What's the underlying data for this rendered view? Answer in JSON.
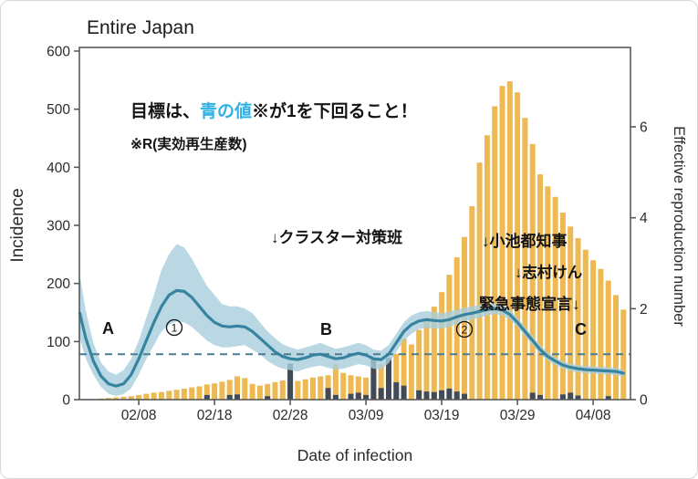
{
  "title": "Entire Japan",
  "colors": {
    "bar_yellow": "#EDB952",
    "bar_dark": "#414B58",
    "rt_line": "#2F7F9D",
    "rt_band": "#A9CEDD",
    "reference_dash": "#4A7C92",
    "goal_text_blue": "#2FB1E3",
    "axis": "#58595B",
    "text": "#1E1E1E"
  },
  "annotations": {
    "goal_prefix": "目標は、",
    "goal_blue": "青の値",
    "goal_suffix": "※が1を下回ること！",
    "goal_note": "※R(実効再生産数)",
    "cluster_team": "↓クラスター対策班",
    "koike_governor": "↓小池都知事",
    "shimura_ken": "↓志村けん",
    "emergency_declaration": "緊急事態宣言↓",
    "marker_a": "A",
    "marker_b": "B",
    "marker_c": "C",
    "marker_1": "1",
    "marker_2": "2"
  },
  "chart_data": {
    "type": "bar+line",
    "title": "Entire Japan",
    "xlabel": "Date of infection",
    "ylabel": "Incidence",
    "y2label": "Effective reproduction number",
    "ylim": [
      0,
      600
    ],
    "y2lim": [
      0,
      7.67
    ],
    "y_ticks": [
      0,
      100,
      200,
      300,
      400,
      500,
      600
    ],
    "y2_ticks": [
      0,
      2,
      4,
      6
    ],
    "x_ticks": {
      "labels": [
        "02/08",
        "02/18",
        "02/28",
        "03/09",
        "03/19",
        "03/29",
        "04/08"
      ],
      "days": [
        7,
        17,
        27,
        37,
        47,
        57,
        67
      ]
    },
    "reference_line_y2": 1,
    "incidence": {
      "dates": [
        "02/01",
        "02/02",
        "02/03",
        "02/04",
        "02/05",
        "02/06",
        "02/07",
        "02/08",
        "02/09",
        "02/10",
        "02/11",
        "02/12",
        "02/13",
        "02/14",
        "02/15",
        "02/16",
        "02/17",
        "02/18",
        "02/19",
        "02/20",
        "02/21",
        "02/22",
        "02/23",
        "02/24",
        "02/25",
        "02/26",
        "02/27",
        "02/28",
        "02/29",
        "03/01",
        "03/02",
        "03/03",
        "03/04",
        "03/05",
        "03/06",
        "03/07",
        "03/08",
        "03/09",
        "03/10",
        "03/11",
        "03/12",
        "03/13",
        "03/14",
        "03/15",
        "03/16",
        "03/17",
        "03/18",
        "03/19",
        "03/20",
        "03/21",
        "03/22",
        "03/23",
        "03/24",
        "03/25",
        "03/26",
        "03/27",
        "03/28",
        "03/29",
        "03/30",
        "03/31",
        "04/01",
        "04/02",
        "04/03",
        "04/04",
        "04/05",
        "04/06",
        "04/07",
        "04/08",
        "04/09",
        "04/10",
        "04/11",
        "04/12"
      ],
      "values": [
        0,
        1,
        2,
        3,
        4,
        5,
        6,
        8,
        10,
        12,
        13,
        15,
        17,
        19,
        21,
        23,
        26,
        28,
        31,
        34,
        40,
        37,
        27,
        24,
        27,
        30,
        33,
        40,
        32,
        35,
        38,
        40,
        42,
        61,
        46,
        42,
        40,
        38,
        50,
        61,
        60,
        79,
        105,
        95,
        120,
        140,
        160,
        185,
        215,
        245,
        280,
        333,
        408,
        455,
        505,
        540,
        548,
        529,
        485,
        440,
        388,
        367,
        349,
        322,
        298,
        278,
        258,
        240,
        225,
        205,
        180,
        155
      ],
      "dark_values": [
        0,
        0,
        0,
        0,
        0,
        0,
        0,
        0,
        0,
        0,
        0,
        0,
        0,
        0,
        0,
        0,
        8,
        0,
        0,
        8,
        9,
        0,
        0,
        0,
        6,
        0,
        0,
        62,
        0,
        0,
        0,
        0,
        20,
        8,
        0,
        10,
        12,
        8,
        71,
        20,
        72,
        30,
        24,
        0,
        16,
        14,
        13,
        16,
        19,
        14,
        10,
        0,
        0,
        0,
        0,
        0,
        0,
        0,
        0,
        12,
        8,
        0,
        0,
        9,
        12,
        7,
        0,
        0,
        0,
        6,
        0,
        0
      ]
    },
    "rt": {
      "days": [
        -0.8,
        0,
        1,
        2,
        3,
        4,
        5,
        6,
        7,
        8,
        9,
        10,
        11,
        12,
        13,
        14,
        15,
        16,
        17,
        18,
        19,
        20,
        21,
        22,
        23,
        24,
        25,
        26,
        27,
        28,
        29,
        30,
        31,
        32,
        33,
        34,
        35,
        36,
        37,
        38,
        39,
        40,
        41,
        42,
        43,
        44,
        45,
        46,
        47,
        48,
        49,
        50,
        51,
        52,
        53,
        54,
        55,
        56,
        57,
        58,
        59,
        60,
        61,
        62,
        63,
        64,
        65,
        66,
        67,
        68,
        69,
        70,
        71
      ],
      "values": [
        1.9,
        1.35,
        0.85,
        0.52,
        0.35,
        0.3,
        0.35,
        0.55,
        0.9,
        1.3,
        1.7,
        2.05,
        2.3,
        2.4,
        2.38,
        2.25,
        2.05,
        1.85,
        1.7,
        1.62,
        1.6,
        1.62,
        1.6,
        1.5,
        1.35,
        1.2,
        1.05,
        0.95,
        0.9,
        0.88,
        0.92,
        0.98,
        1.0,
        0.95,
        0.9,
        0.92,
        0.98,
        1.02,
        0.98,
        0.9,
        0.88,
        1.0,
        1.25,
        1.5,
        1.65,
        1.73,
        1.76,
        1.74,
        1.73,
        1.76,
        1.82,
        1.87,
        1.9,
        1.94,
        1.98,
        2.0,
        1.97,
        1.87,
        1.7,
        1.5,
        1.3,
        1.1,
        0.95,
        0.85,
        0.76,
        0.71,
        0.68,
        0.66,
        0.65,
        0.64,
        0.63,
        0.62,
        0.58
      ],
      "lower": [
        1.35,
        0.9,
        0.55,
        0.28,
        0.13,
        0.08,
        0.12,
        0.25,
        0.55,
        0.9,
        1.2,
        1.5,
        1.65,
        1.72,
        1.7,
        1.6,
        1.45,
        1.3,
        1.2,
        1.15,
        1.15,
        1.18,
        1.2,
        1.1,
        1.0,
        0.85,
        0.75,
        0.68,
        0.65,
        0.62,
        0.68,
        0.72,
        0.75,
        0.7,
        0.66,
        0.68,
        0.73,
        0.78,
        0.75,
        0.68,
        0.66,
        0.8,
        1.05,
        1.3,
        1.45,
        1.55,
        1.58,
        1.56,
        1.56,
        1.6,
        1.66,
        1.72,
        1.76,
        1.8,
        1.85,
        1.88,
        1.85,
        1.76,
        1.6,
        1.4,
        1.2,
        1.0,
        0.86,
        0.76,
        0.68,
        0.63,
        0.6,
        0.58,
        0.57,
        0.56,
        0.55,
        0.54,
        0.5
      ],
      "upper": [
        2.75,
        1.95,
        1.25,
        0.82,
        0.62,
        0.55,
        0.65,
        0.9,
        1.3,
        1.8,
        2.3,
        2.85,
        3.2,
        3.42,
        3.35,
        3.1,
        2.8,
        2.5,
        2.3,
        2.1,
        2.05,
        2.05,
        2.0,
        1.9,
        1.7,
        1.5,
        1.35,
        1.22,
        1.15,
        1.1,
        1.15,
        1.2,
        1.25,
        1.18,
        1.12,
        1.15,
        1.2,
        1.25,
        1.2,
        1.1,
        1.08,
        1.2,
        1.45,
        1.7,
        1.85,
        1.92,
        1.95,
        1.92,
        1.9,
        1.93,
        1.98,
        2.02,
        2.05,
        2.08,
        2.1,
        2.12,
        2.08,
        1.98,
        1.8,
        1.6,
        1.4,
        1.2,
        1.04,
        0.93,
        0.84,
        0.79,
        0.76,
        0.74,
        0.73,
        0.72,
        0.71,
        0.7,
        0.66
      ]
    }
  }
}
